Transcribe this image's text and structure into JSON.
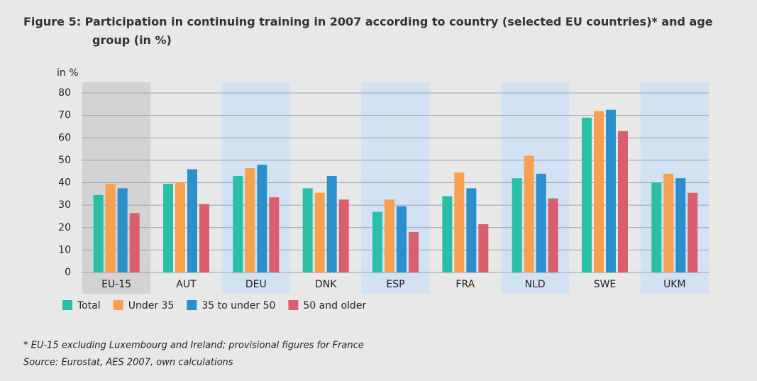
{
  "chart_data": {
    "type": "bar",
    "title": "Figure 5: Participation in continuing training in 2007 according to country (selected EU countries)* and age group (in %)",
    "y_label": "in %",
    "categories": [
      "EU-15",
      "AUT",
      "DEU",
      "DNK",
      "ESP",
      "FRA",
      "NLD",
      "SWE",
      "UKM"
    ],
    "series": [
      {
        "name": "Total",
        "color": "#2bbfa5",
        "values": [
          34.5,
          39.5,
          43,
          37.5,
          27,
          34,
          42,
          69,
          40
        ]
      },
      {
        "name": "Under 35",
        "color": "#f7a150",
        "values": [
          39.5,
          40,
          46.5,
          35.5,
          32.5,
          44.5,
          52,
          72,
          44
        ]
      },
      {
        "name": "35 to under 50",
        "color": "#2b8fcc",
        "values": [
          37.5,
          46,
          48,
          43,
          29.5,
          37.5,
          44,
          72.5,
          42
        ]
      },
      {
        "name": "50 and older",
        "color": "#d95f6e",
        "values": [
          26.5,
          30.5,
          33.5,
          32.5,
          18,
          21.5,
          33,
          63,
          35.5
        ]
      }
    ],
    "ylim": [
      0,
      80
    ],
    "yticks": [
      0,
      10,
      20,
      30,
      40,
      50,
      60,
      70,
      80
    ],
    "grid": true,
    "note": "* EU-15 excluding Luxembourg and Ireland; provisional figures for France",
    "source": "Source: Eurostat, AES 2007, own calculations"
  }
}
